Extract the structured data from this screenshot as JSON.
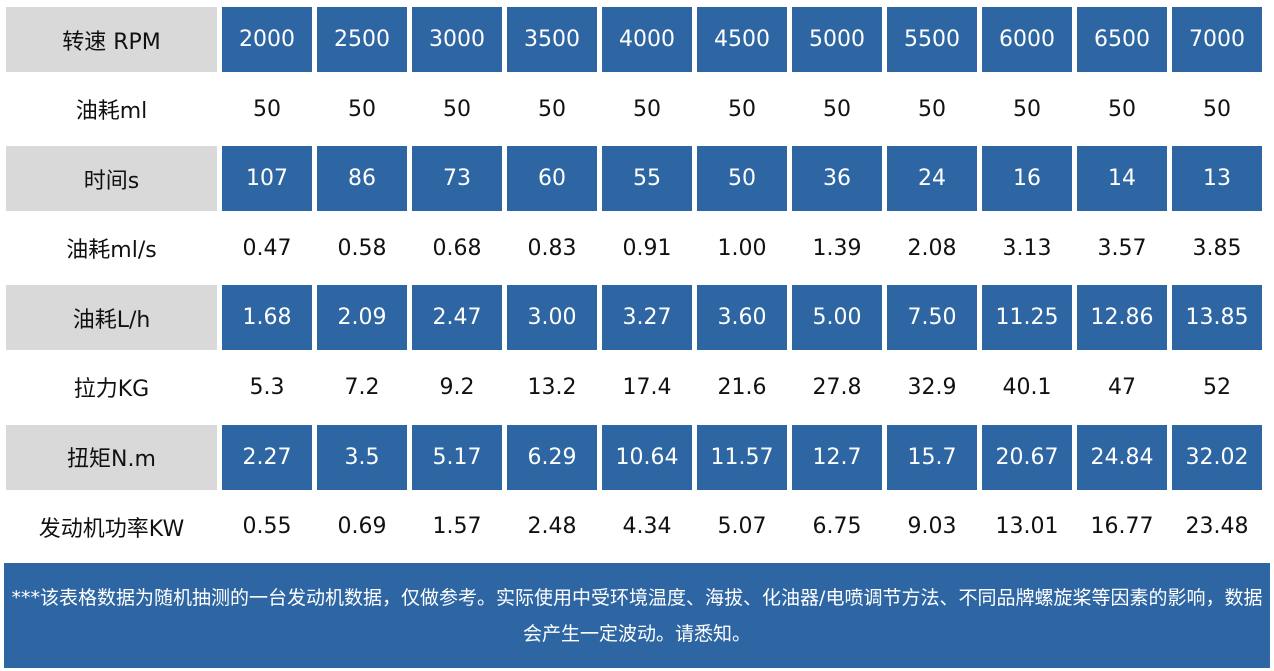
{
  "table": {
    "rows": [
      {
        "label": "转速 RPM",
        "shaded": true,
        "values": [
          "2000",
          "2500",
          "3000",
          "3500",
          "4000",
          "4500",
          "5000",
          "5500",
          "6000",
          "6500",
          "7000"
        ]
      },
      {
        "label": "油耗ml",
        "shaded": false,
        "values": [
          "50",
          "50",
          "50",
          "50",
          "50",
          "50",
          "50",
          "50",
          "50",
          "50",
          "50"
        ]
      },
      {
        "label": "时间s",
        "shaded": true,
        "values": [
          "107",
          "86",
          "73",
          "60",
          "55",
          "50",
          "36",
          "24",
          "16",
          "14",
          "13"
        ]
      },
      {
        "label": "油耗ml/s",
        "shaded": false,
        "values": [
          "0.47",
          "0.58",
          "0.68",
          "0.83",
          "0.91",
          "1.00",
          "1.39",
          "2.08",
          "3.13",
          "3.57",
          "3.85"
        ]
      },
      {
        "label": "油耗L/h",
        "shaded": true,
        "values": [
          "1.68",
          "2.09",
          "2.47",
          "3.00",
          "3.27",
          "3.60",
          "5.00",
          "7.50",
          "11.25",
          "12.86",
          "13.85"
        ]
      },
      {
        "label": "拉力KG",
        "shaded": false,
        "values": [
          "5.3",
          "7.2",
          "9.2",
          "13.2",
          "17.4",
          "21.6",
          "27.8",
          "32.9",
          "40.1",
          "47",
          "52"
        ]
      },
      {
        "label": "扭矩N.m",
        "shaded": true,
        "values": [
          "2.27",
          "3.5",
          "5.17",
          "6.29",
          "10.64",
          "11.57",
          "12.7",
          "15.7",
          "20.67",
          "24.84",
          "32.02"
        ]
      },
      {
        "label": "发动机功率KW",
        "shaded": false,
        "values": [
          "0.55",
          "0.69",
          "1.57",
          "2.48",
          "4.34",
          "5.07",
          "6.75",
          "9.03",
          "13.01",
          "16.77",
          "23.48"
        ]
      }
    ]
  },
  "note": {
    "text": "***该表格数据为随机抽测的一台发动机数据，仅做参考。实际使用中受环境温度、海拔、化油器/电喷调节方法、不同品牌螺旋桨等因素的影响，数据会产生一定波动。请悉知。"
  },
  "colors": {
    "header_blue": "#2e65a3",
    "label_gray": "#d9d9d9"
  }
}
